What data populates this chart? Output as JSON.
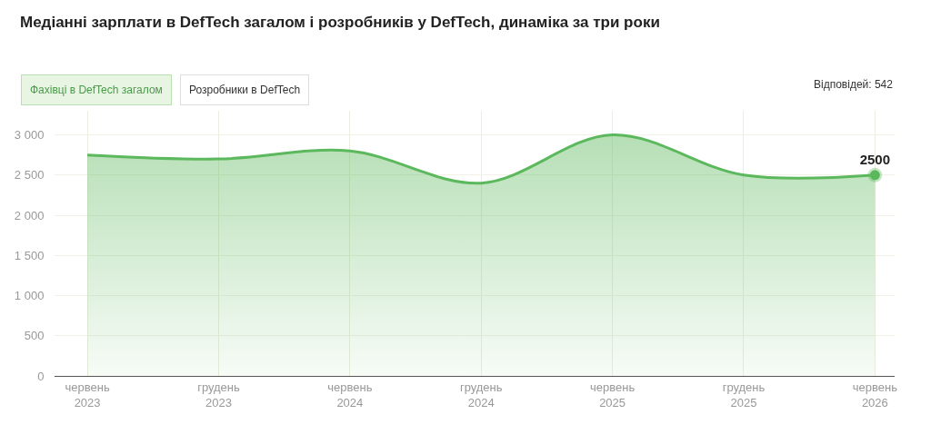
{
  "chart_data": {
    "type": "area",
    "title": "Медіанні зарплати в DefTech загалом і розробників у DefTech, динаміка за три роки",
    "categories": [
      "червень 2023",
      "грудень 2023",
      "червень 2024",
      "грудень 2024",
      "червень 2025",
      "грудень 2025",
      "червень 2026"
    ],
    "series": [
      {
        "color": "#5cb85c",
        "values": [
          2750,
          2700,
          2800,
          2400,
          3000,
          2500,
          2500
        ],
        "value_labels": [
          null,
          null,
          null,
          null,
          null,
          null,
          "2500"
        ]
      }
    ],
    "ylim": [
      0,
      3300
    ],
    "yticks": [
      0,
      500,
      {
        "value": 1000,
        "label": "1 000"
      },
      {
        "value": 1500,
        "label": "1 500"
      },
      {
        "value": 2000,
        "label": "2 000"
      },
      {
        "value": 2500,
        "label": "2 500"
      },
      {
        "value": 3000,
        "label": "3 000"
      }
    ],
    "grid": true,
    "marker": "none",
    "line_style": "solid",
    "annotations": [
      "Фахівці в DefTech загалом",
      "Розробники в DefTech",
      "Відповідей: 542"
    ]
  }
}
